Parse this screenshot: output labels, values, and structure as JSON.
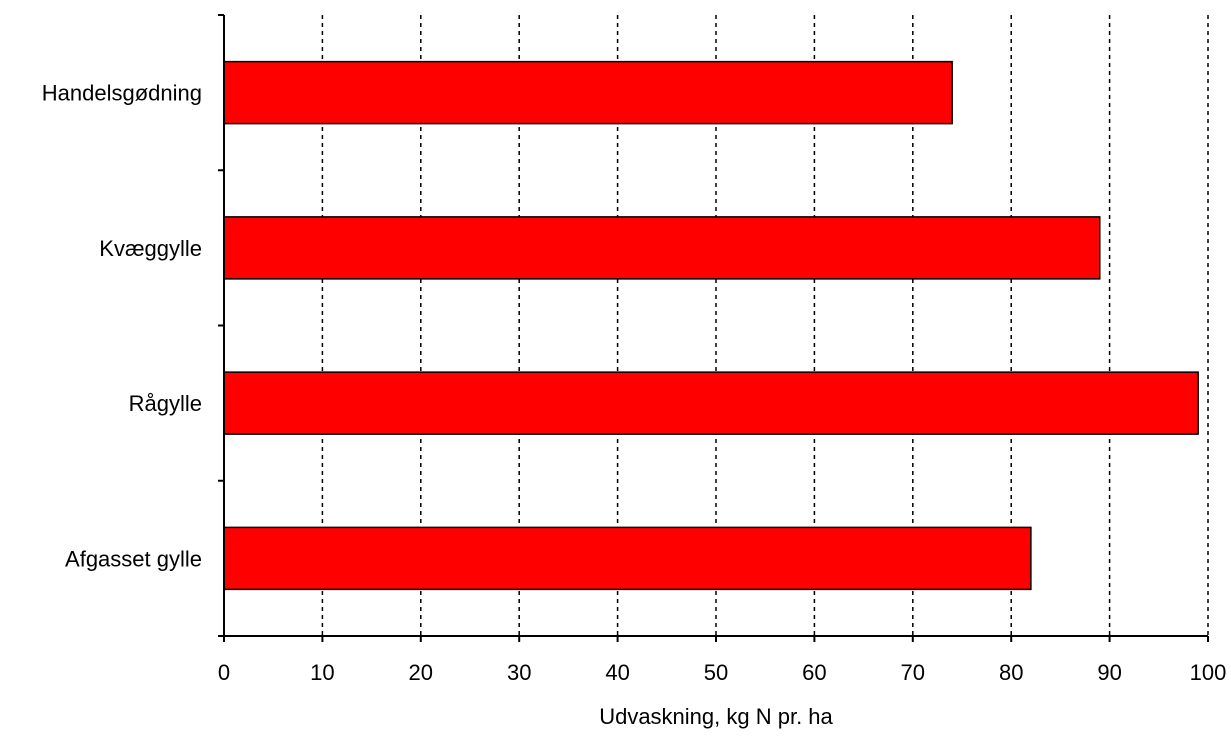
{
  "chart_data": {
    "type": "bar",
    "orientation": "horizontal",
    "title": "",
    "xlabel": "Udvaskning, kg N pr. ha",
    "ylabel": "",
    "xlim": [
      0,
      100
    ],
    "xticks": [
      0,
      10,
      20,
      30,
      40,
      50,
      60,
      70,
      80,
      90,
      100
    ],
    "grid": "vertical dashed",
    "legend": "none",
    "categories": [
      "Handelsgødning",
      "Kvæggylle",
      "Rågylle",
      "Afgasset gylle"
    ],
    "values": [
      74,
      89,
      99,
      82
    ],
    "bar_color": "#ff0000"
  }
}
